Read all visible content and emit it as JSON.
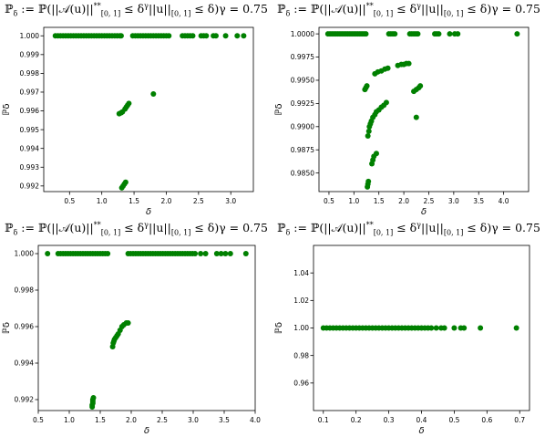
{
  "chart_data": [
    {
      "type": "scatter",
      "title": "ℙδ := ℙ(||𝒜(u)||**[0, 1] ≤ δ^γ||u||[0, 1] ≤ δ)γ = 0.75",
      "xlabel": "δ",
      "ylabel": "ℙδ",
      "xlim": [
        0.1,
        3.35
      ],
      "ylim": [
        0.9917,
        1.00045
      ],
      "xticks": [
        0.5,
        1.0,
        1.5,
        2.0,
        2.5,
        3.0
      ],
      "yticks": [
        0.992,
        0.993,
        0.994,
        0.995,
        0.996,
        0.997,
        0.998,
        0.999,
        1.0
      ],
      "xtick_labels": [
        "0.5",
        "1.0",
        "1.5",
        "2.0",
        "2.5",
        "3.0"
      ],
      "ytick_labels": [
        "0.992",
        "0.993",
        "0.994",
        "0.995",
        "0.996",
        "0.997",
        "0.998",
        "0.999",
        "1.000"
      ],
      "color": "#008000",
      "points": [
        [
          0.28,
          1.0
        ],
        [
          0.32,
          1.0
        ],
        [
          0.36,
          1.0
        ],
        [
          0.4,
          1.0
        ],
        [
          0.44,
          1.0
        ],
        [
          0.48,
          1.0
        ],
        [
          0.52,
          1.0
        ],
        [
          0.56,
          1.0
        ],
        [
          0.6,
          1.0
        ],
        [
          0.64,
          1.0
        ],
        [
          0.68,
          1.0
        ],
        [
          0.72,
          1.0
        ],
        [
          0.76,
          1.0
        ],
        [
          0.8,
          1.0
        ],
        [
          0.84,
          1.0
        ],
        [
          0.88,
          1.0
        ],
        [
          0.92,
          1.0
        ],
        [
          0.96,
          1.0
        ],
        [
          1.0,
          1.0
        ],
        [
          1.04,
          1.0
        ],
        [
          1.08,
          1.0
        ],
        [
          1.12,
          1.0
        ],
        [
          1.16,
          1.0
        ],
        [
          1.2,
          1.0
        ],
        [
          1.24,
          1.0
        ],
        [
          1.28,
          1.0
        ],
        [
          1.3,
          1.0
        ],
        [
          1.48,
          1.0
        ],
        [
          1.52,
          1.0
        ],
        [
          1.56,
          1.0
        ],
        [
          1.6,
          1.0
        ],
        [
          1.64,
          1.0
        ],
        [
          1.68,
          1.0
        ],
        [
          1.72,
          1.0
        ],
        [
          1.76,
          1.0
        ],
        [
          1.8,
          1.0
        ],
        [
          1.84,
          1.0
        ],
        [
          1.88,
          1.0
        ],
        [
          1.92,
          1.0
        ],
        [
          1.96,
          1.0
        ],
        [
          2.0,
          1.0
        ],
        [
          2.04,
          1.0
        ],
        [
          2.25,
          1.0
        ],
        [
          2.29,
          1.0
        ],
        [
          2.33,
          1.0
        ],
        [
          2.37,
          1.0
        ],
        [
          2.41,
          1.0
        ],
        [
          2.54,
          1.0
        ],
        [
          2.58,
          1.0
        ],
        [
          2.62,
          1.0
        ],
        [
          2.73,
          1.0
        ],
        [
          2.77,
          1.0
        ],
        [
          2.92,
          1.0
        ],
        [
          3.1,
          1.0
        ],
        [
          3.2,
          1.0
        ],
        [
          1.8,
          0.9969
        ],
        [
          1.27,
          0.99585
        ],
        [
          1.3,
          0.9959
        ],
        [
          1.32,
          0.99595
        ],
        [
          1.36,
          0.9961
        ],
        [
          1.38,
          0.9962
        ],
        [
          1.4,
          0.9963
        ],
        [
          1.42,
          0.9964
        ],
        [
          1.31,
          0.9919
        ],
        [
          1.33,
          0.992
        ],
        [
          1.35,
          0.9921
        ],
        [
          1.37,
          0.9922
        ]
      ]
    },
    {
      "type": "scatter",
      "title": "ℙδ := ℙ(||𝒜(u)||**[0, 1] ≤ δ^γ||u||[0, 1] ≤ δ)γ = 0.75",
      "xlabel": "δ",
      "ylabel": "ℙδ",
      "xlim": [
        0.3,
        4.5
      ],
      "ylim": [
        0.983,
        1.0007
      ],
      "xticks": [
        0.5,
        1.0,
        1.5,
        2.0,
        2.5,
        3.0,
        3.5,
        4.0
      ],
      "yticks": [
        0.985,
        0.9875,
        0.99,
        0.9925,
        0.995,
        0.9975,
        1.0
      ],
      "xtick_labels": [
        "0.5",
        "1.0",
        "1.5",
        "2.0",
        "2.5",
        "3.0",
        "3.5",
        "4.0"
      ],
      "ytick_labels": [
        "0.9850",
        "0.9875",
        "0.9900",
        "0.9925",
        "0.9950",
        "0.9975",
        "1.0000"
      ],
      "color": "#008000",
      "points": [
        [
          0.48,
          1.0
        ],
        [
          0.52,
          1.0
        ],
        [
          0.56,
          1.0
        ],
        [
          0.6,
          1.0
        ],
        [
          0.64,
          1.0
        ],
        [
          0.68,
          1.0
        ],
        [
          0.72,
          1.0
        ],
        [
          0.76,
          1.0
        ],
        [
          0.8,
          1.0
        ],
        [
          0.84,
          1.0
        ],
        [
          0.88,
          1.0
        ],
        [
          0.92,
          1.0
        ],
        [
          0.96,
          1.0
        ],
        [
          1.0,
          1.0
        ],
        [
          1.04,
          1.0
        ],
        [
          1.08,
          1.0
        ],
        [
          1.12,
          1.0
        ],
        [
          1.16,
          1.0
        ],
        [
          1.2,
          1.0
        ],
        [
          1.24,
          1.0
        ],
        [
          1.7,
          1.0
        ],
        [
          1.74,
          1.0
        ],
        [
          1.78,
          1.0
        ],
        [
          1.82,
          1.0
        ],
        [
          2.12,
          1.0
        ],
        [
          2.16,
          1.0
        ],
        [
          2.2,
          1.0
        ],
        [
          2.24,
          1.0
        ],
        [
          2.28,
          1.0
        ],
        [
          2.62,
          1.0
        ],
        [
          2.66,
          1.0
        ],
        [
          2.7,
          1.0
        ],
        [
          2.92,
          1.0
        ],
        [
          3.02,
          1.0
        ],
        [
          3.08,
          1.0
        ],
        [
          4.27,
          1.0
        ],
        [
          1.22,
          0.994
        ],
        [
          1.24,
          0.9942
        ],
        [
          1.26,
          0.9944
        ],
        [
          1.42,
          0.9957
        ],
        [
          1.48,
          0.9959
        ],
        [
          1.55,
          0.996
        ],
        [
          1.62,
          0.9962
        ],
        [
          1.68,
          0.9963
        ],
        [
          1.88,
          0.9966
        ],
        [
          1.95,
          0.9967
        ],
        [
          2.0,
          0.9967
        ],
        [
          2.05,
          0.9968
        ],
        [
          2.1,
          0.9968
        ],
        [
          2.2,
          0.9938
        ],
        [
          2.25,
          0.994
        ],
        [
          2.3,
          0.9942
        ],
        [
          2.33,
          0.9944
        ],
        [
          2.25,
          0.991
        ],
        [
          1.28,
          0.989
        ],
        [
          1.3,
          0.9895
        ],
        [
          1.31,
          0.99
        ],
        [
          1.33,
          0.9903
        ],
        [
          1.35,
          0.9906
        ],
        [
          1.38,
          0.991
        ],
        [
          1.42,
          0.9913
        ],
        [
          1.45,
          0.9916
        ],
        [
          1.5,
          0.9918
        ],
        [
          1.55,
          0.9921
        ],
        [
          1.6,
          0.9923
        ],
        [
          1.65,
          0.9926
        ],
        [
          1.36,
          0.986
        ],
        [
          1.38,
          0.9864
        ],
        [
          1.4,
          0.9868
        ],
        [
          1.45,
          0.9871
        ],
        [
          1.27,
          0.9835
        ],
        [
          1.28,
          0.9838
        ],
        [
          1.29,
          0.9841
        ]
      ]
    },
    {
      "type": "scatter",
      "title": "ℙδ := ℙ(||𝒜(u)||**[0, 1] ≤ δ^γ||u||[0, 1] ≤ δ)γ = 0.75",
      "xlabel": "δ",
      "ylabel": "ℙδ",
      "xlim": [
        0.5,
        4.0
      ],
      "ylim": [
        0.9914,
        1.00045
      ],
      "xticks": [
        0.5,
        1.0,
        1.5,
        2.0,
        2.5,
        3.0,
        3.5,
        4.0
      ],
      "yticks": [
        0.992,
        0.994,
        0.996,
        0.998,
        1.0
      ],
      "xtick_labels": [
        "0.5",
        "1.0",
        "1.5",
        "2.0",
        "2.5",
        "3.0",
        "3.5",
        "4.0"
      ],
      "ytick_labels": [
        "0.992",
        "0.994",
        "0.996",
        "0.998",
        "1.000"
      ],
      "color": "#008000",
      "points": [
        [
          0.65,
          1.0
        ],
        [
          0.82,
          1.0
        ],
        [
          0.86,
          1.0
        ],
        [
          0.9,
          1.0
        ],
        [
          0.94,
          1.0
        ],
        [
          0.98,
          1.0
        ],
        [
          1.02,
          1.0
        ],
        [
          1.06,
          1.0
        ],
        [
          1.1,
          1.0
        ],
        [
          1.14,
          1.0
        ],
        [
          1.18,
          1.0
        ],
        [
          1.22,
          1.0
        ],
        [
          1.26,
          1.0
        ],
        [
          1.3,
          1.0
        ],
        [
          1.34,
          1.0
        ],
        [
          1.38,
          1.0
        ],
        [
          1.42,
          1.0
        ],
        [
          1.46,
          1.0
        ],
        [
          1.5,
          1.0
        ],
        [
          1.54,
          1.0
        ],
        [
          1.58,
          1.0
        ],
        [
          1.62,
          1.0
        ],
        [
          1.95,
          1.0
        ],
        [
          1.99,
          1.0
        ],
        [
          2.03,
          1.0
        ],
        [
          2.07,
          1.0
        ],
        [
          2.11,
          1.0
        ],
        [
          2.15,
          1.0
        ],
        [
          2.19,
          1.0
        ],
        [
          2.23,
          1.0
        ],
        [
          2.27,
          1.0
        ],
        [
          2.31,
          1.0
        ],
        [
          2.35,
          1.0
        ],
        [
          2.39,
          1.0
        ],
        [
          2.43,
          1.0
        ],
        [
          2.47,
          1.0
        ],
        [
          2.51,
          1.0
        ],
        [
          2.55,
          1.0
        ],
        [
          2.59,
          1.0
        ],
        [
          2.63,
          1.0
        ],
        [
          2.67,
          1.0
        ],
        [
          2.71,
          1.0
        ],
        [
          2.75,
          1.0
        ],
        [
          2.79,
          1.0
        ],
        [
          2.83,
          1.0
        ],
        [
          2.87,
          1.0
        ],
        [
          2.91,
          1.0
        ],
        [
          2.95,
          1.0
        ],
        [
          2.99,
          1.0
        ],
        [
          3.03,
          1.0
        ],
        [
          3.12,
          1.0
        ],
        [
          3.2,
          1.0
        ],
        [
          3.38,
          1.0
        ],
        [
          3.45,
          1.0
        ],
        [
          3.52,
          1.0
        ],
        [
          3.6,
          1.0
        ],
        [
          3.85,
          1.0
        ],
        [
          1.7,
          0.9949
        ],
        [
          1.71,
          0.9951
        ],
        [
          1.72,
          0.9952
        ],
        [
          1.73,
          0.9953
        ],
        [
          1.75,
          0.9954
        ],
        [
          1.77,
          0.9955
        ],
        [
          1.79,
          0.9956
        ],
        [
          1.82,
          0.9958
        ],
        [
          1.85,
          0.996
        ],
        [
          1.88,
          0.9961
        ],
        [
          1.92,
          0.9962
        ],
        [
          1.95,
          0.9962
        ],
        [
          1.37,
          0.9916
        ],
        [
          1.37,
          0.9917
        ],
        [
          1.38,
          0.9918
        ],
        [
          1.38,
          0.9919
        ],
        [
          1.38,
          0.992
        ],
        [
          1.39,
          0.9921
        ]
      ]
    },
    {
      "type": "scatter",
      "title": "ℙδ := ℙ(||𝒜(u)||**[0, 1] ≤ δ^γ||u||[0, 1] ≤ δ)γ = 0.75",
      "xlabel": "δ",
      "ylabel": "ℙδ",
      "xlim": [
        0.07,
        0.73
      ],
      "ylim": [
        0.94,
        1.06
      ],
      "xticks": [
        0.1,
        0.2,
        0.3,
        0.4,
        0.5,
        0.6,
        0.7
      ],
      "yticks": [
        0.96,
        0.98,
        1.0,
        1.02,
        1.04
      ],
      "xtick_labels": [
        "0.1",
        "0.2",
        "0.3",
        "0.4",
        "0.5",
        "0.6",
        "0.7"
      ],
      "ytick_labels": [
        "0.96",
        "0.98",
        "1.00",
        "1.02",
        "1.04"
      ],
      "color": "#008000",
      "points": [
        [
          0.1,
          1.0
        ],
        [
          0.11,
          1.0
        ],
        [
          0.12,
          1.0
        ],
        [
          0.13,
          1.0
        ],
        [
          0.14,
          1.0
        ],
        [
          0.15,
          1.0
        ],
        [
          0.16,
          1.0
        ],
        [
          0.17,
          1.0
        ],
        [
          0.18,
          1.0
        ],
        [
          0.19,
          1.0
        ],
        [
          0.2,
          1.0
        ],
        [
          0.21,
          1.0
        ],
        [
          0.22,
          1.0
        ],
        [
          0.23,
          1.0
        ],
        [
          0.24,
          1.0
        ],
        [
          0.25,
          1.0
        ],
        [
          0.26,
          1.0
        ],
        [
          0.27,
          1.0
        ],
        [
          0.28,
          1.0
        ],
        [
          0.29,
          1.0
        ],
        [
          0.3,
          1.0
        ],
        [
          0.31,
          1.0
        ],
        [
          0.32,
          1.0
        ],
        [
          0.33,
          1.0
        ],
        [
          0.34,
          1.0
        ],
        [
          0.35,
          1.0
        ],
        [
          0.36,
          1.0
        ],
        [
          0.37,
          1.0
        ],
        [
          0.38,
          1.0
        ],
        [
          0.39,
          1.0
        ],
        [
          0.4,
          1.0
        ],
        [
          0.41,
          1.0
        ],
        [
          0.42,
          1.0
        ],
        [
          0.43,
          1.0
        ],
        [
          0.445,
          1.0
        ],
        [
          0.46,
          1.0
        ],
        [
          0.47,
          1.0
        ],
        [
          0.5,
          1.0
        ],
        [
          0.52,
          1.0
        ],
        [
          0.53,
          1.0
        ],
        [
          0.58,
          1.0
        ],
        [
          0.69,
          1.0
        ]
      ]
    }
  ]
}
